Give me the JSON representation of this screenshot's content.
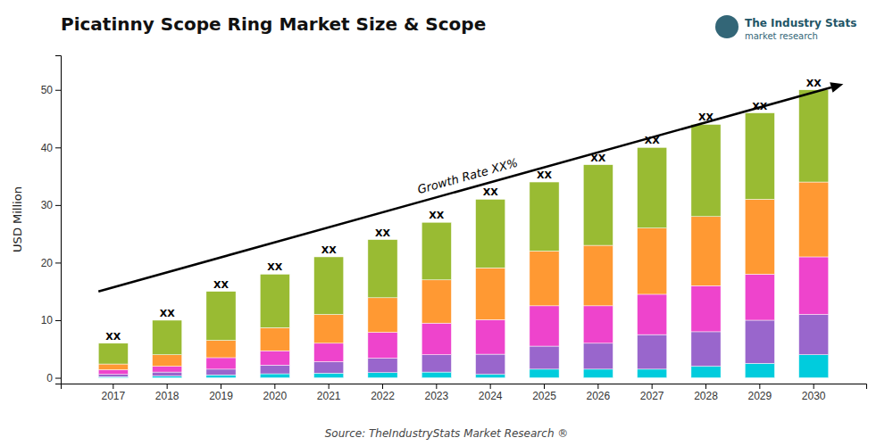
{
  "chart_data": {
    "type": "bar",
    "stacked": true,
    "title": "Picatinny Scope Ring Market Size & Scope",
    "ylabel": "USD Million",
    "source": "Source: TheIndustryStats Market Research ®",
    "categories": [
      "2017",
      "2018",
      "2019",
      "2020",
      "2021",
      "2022",
      "2023",
      "2024",
      "2025",
      "2026",
      "2027",
      "2028",
      "2029",
      "2030"
    ],
    "series": [
      {
        "color": "#00ccdd",
        "values": [
          0.2,
          0.3,
          0.5,
          0.7,
          0.8,
          0.9,
          1.0,
          0.6,
          1.5,
          1.5,
          1.5,
          2.0,
          2.5,
          4.0
        ]
      },
      {
        "color": "#9966cc",
        "values": [
          0.4,
          0.7,
          1.0,
          1.5,
          2.0,
          2.5,
          3.0,
          3.5,
          4.0,
          4.5,
          6.0,
          6.0,
          7.5,
          7.0
        ]
      },
      {
        "color": "#ee44cc",
        "values": [
          0.8,
          1.0,
          2.0,
          2.5,
          3.2,
          4.5,
          5.5,
          6.0,
          7.0,
          6.5,
          7.0,
          8.0,
          8.0,
          10.0
        ]
      },
      {
        "color": "#ff9933",
        "values": [
          1.0,
          2.0,
          3.0,
          4.0,
          5.0,
          6.0,
          7.5,
          9.0,
          9.5,
          10.5,
          11.5,
          12.0,
          13.0,
          13.0
        ]
      },
      {
        "color": "#99bb33",
        "values": [
          3.6,
          6.0,
          8.5,
          9.3,
          10.0,
          10.1,
          10.0,
          11.9,
          12.0,
          14.0,
          14.0,
          16.0,
          15.0,
          16.0
        ],
        "value_labels": [
          "XX",
          "XX",
          "XX",
          "XX",
          "XX",
          "XX",
          "XX",
          "XX",
          "XX",
          "XX",
          "XX",
          "XX",
          "XX",
          "XX"
        ]
      }
    ],
    "ylim": [
      -1,
      56
    ],
    "yticks": [
      0,
      10,
      20,
      30,
      40,
      50
    ],
    "grid": false,
    "annotations": [
      {
        "text": "Growth Rate XX%",
        "arrow_y": [
          15,
          51
        ]
      },
      {
        "text": "The Industry Stats"
      },
      {
        "text": "market research"
      }
    ]
  }
}
